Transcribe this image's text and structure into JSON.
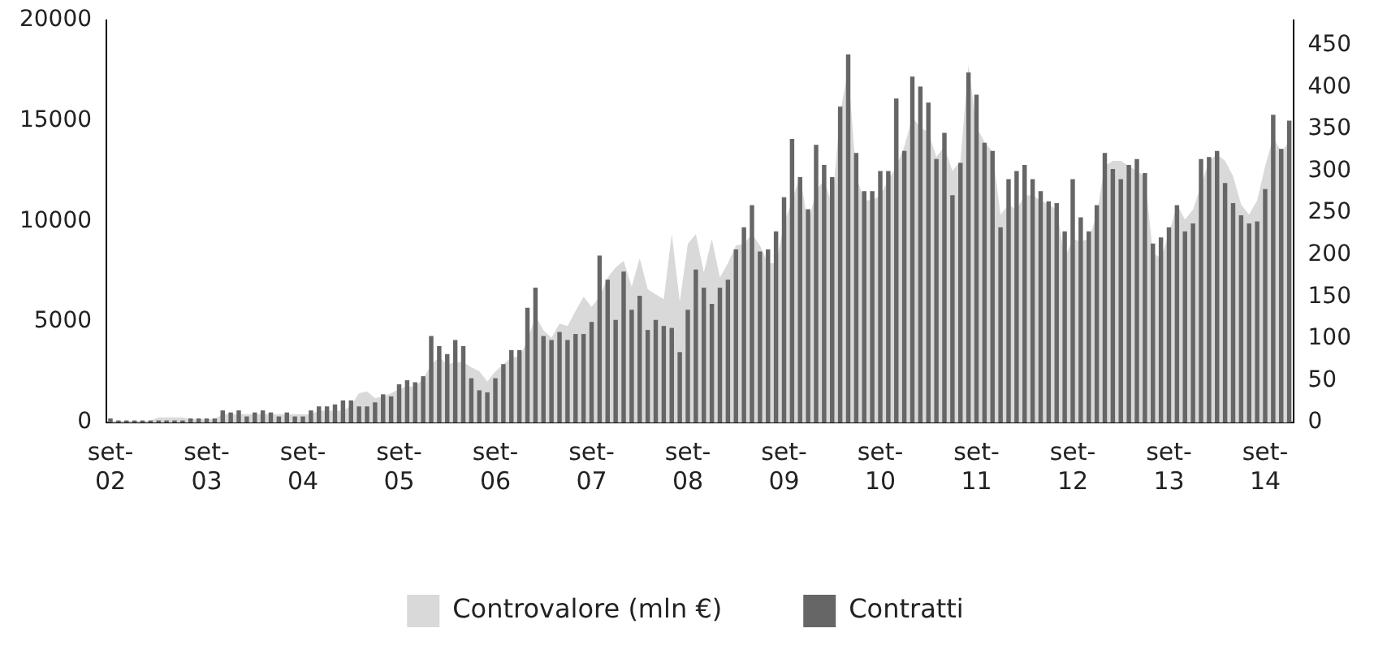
{
  "chart_data": {
    "type": "bar",
    "categories": [
      "set-02",
      null,
      null,
      null,
      null,
      null,
      null,
      null,
      null,
      null,
      null,
      null,
      "set-03",
      null,
      null,
      null,
      null,
      null,
      null,
      null,
      null,
      null,
      null,
      null,
      "set-04",
      null,
      null,
      null,
      null,
      null,
      null,
      null,
      null,
      null,
      null,
      null,
      "set-05",
      null,
      null,
      null,
      null,
      null,
      null,
      null,
      null,
      null,
      null,
      null,
      "set-06",
      null,
      null,
      null,
      null,
      null,
      null,
      null,
      null,
      null,
      null,
      null,
      "set-07",
      null,
      null,
      null,
      null,
      null,
      null,
      null,
      null,
      null,
      null,
      null,
      "set-08",
      null,
      null,
      null,
      null,
      null,
      null,
      null,
      null,
      null,
      null,
      null,
      "set-09",
      null,
      null,
      null,
      null,
      null,
      null,
      null,
      null,
      null,
      null,
      null,
      "set-10",
      null,
      null,
      null,
      null,
      null,
      null,
      null,
      null,
      null,
      null,
      null,
      "set-11",
      null,
      null,
      null,
      null,
      null,
      null,
      null,
      null,
      null,
      null,
      null,
      "set-12",
      null,
      null,
      null,
      null,
      null,
      null,
      null,
      null,
      null,
      null,
      null,
      "set-13",
      null,
      null,
      null,
      null,
      null,
      null,
      null,
      null,
      null,
      null,
      null,
      "set-14",
      null,
      null,
      null
    ],
    "series": [
      {
        "name": "Controvalore (mln €)",
        "type": "area",
        "axis": "y2",
        "color": "#d9d9d9",
        "values": [
          2,
          2,
          2,
          2,
          2,
          2,
          6,
          6,
          6,
          6,
          4,
          4,
          4,
          4,
          10,
          10,
          10,
          10,
          10,
          10,
          10,
          10,
          10,
          10,
          10,
          10,
          14,
          14,
          14,
          14,
          20,
          35,
          37,
          29,
          31,
          35,
          40,
          43,
          43,
          52,
          69,
          78,
          69,
          72,
          72,
          66,
          61,
          49,
          61,
          69,
          78,
          78,
          98,
          127,
          110,
          101,
          118,
          115,
          133,
          150,
          138,
          150,
          173,
          185,
          193,
          162,
          196,
          159,
          153,
          147,
          225,
          144,
          213,
          225,
          179,
          219,
          173,
          190,
          211,
          213,
          225,
          211,
          190,
          190,
          237,
          265,
          294,
          237,
          277,
          289,
          260,
          369,
          421,
          294,
          265,
          265,
          271,
          289,
          306,
          329,
          364,
          352,
          346,
          317,
          329,
          300,
          312,
          427,
          352,
          335,
          323,
          248,
          260,
          254,
          271,
          271,
          265,
          260,
          254,
          196,
          219,
          216,
          219,
          248,
          306,
          312,
          312,
          306,
          300,
          294,
          202,
          196,
          225,
          260,
          242,
          254,
          283,
          312,
          320,
          312,
          294,
          260,
          248,
          265,
          306,
          340,
          323,
          335
        ]
      },
      {
        "name": "Contratti",
        "axis": "y",
        "color": "#666666",
        "values": [
          200,
          100,
          100,
          100,
          100,
          100,
          100,
          100,
          100,
          100,
          200,
          200,
          200,
          200,
          600,
          500,
          600,
          300,
          500,
          600,
          500,
          300,
          500,
          300,
          300,
          600,
          800,
          800,
          900,
          1100,
          1100,
          800,
          800,
          1000,
          1400,
          1300,
          1900,
          2100,
          2000,
          2300,
          4300,
          3800,
          3400,
          4100,
          3800,
          2200,
          1600,
          1500,
          2200,
          2900,
          3600,
          3600,
          5700,
          6700,
          4300,
          4100,
          4500,
          4100,
          4400,
          4400,
          5000,
          8300,
          7100,
          5100,
          7500,
          5600,
          6300,
          4600,
          5100,
          4800,
          4700,
          3500,
          5600,
          7600,
          6700,
          5900,
          6700,
          7100,
          8600,
          9700,
          10800,
          8500,
          8600,
          9500,
          11200,
          14100,
          12200,
          10600,
          13800,
          12800,
          12200,
          15700,
          18300,
          13400,
          11500,
          11500,
          12500,
          12500,
          16100,
          13500,
          17200,
          16700,
          15900,
          13100,
          14400,
          11300,
          12900,
          17400,
          16300,
          13900,
          13500,
          9700,
          12100,
          12500,
          12800,
          12100,
          11500,
          11000,
          10900,
          9500,
          12100,
          10200,
          9500,
          10800,
          13400,
          12600,
          12100,
          12800,
          13100,
          12400,
          8900,
          9200,
          9700,
          10800,
          9500,
          9900,
          13100,
          13200,
          13500,
          11900,
          10900,
          10300,
          9900,
          10000,
          11600,
          15300,
          13600,
          15000
        ]
      }
    ],
    "ylim": [
      0,
      20000
    ],
    "yticks": [
      0,
      5000,
      10000,
      15000,
      20000
    ],
    "y2lim": [
      0,
      480
    ],
    "y2ticks": [
      0,
      50,
      100,
      150,
      200,
      250,
      300,
      350,
      400,
      450
    ],
    "legend": "bottom"
  }
}
